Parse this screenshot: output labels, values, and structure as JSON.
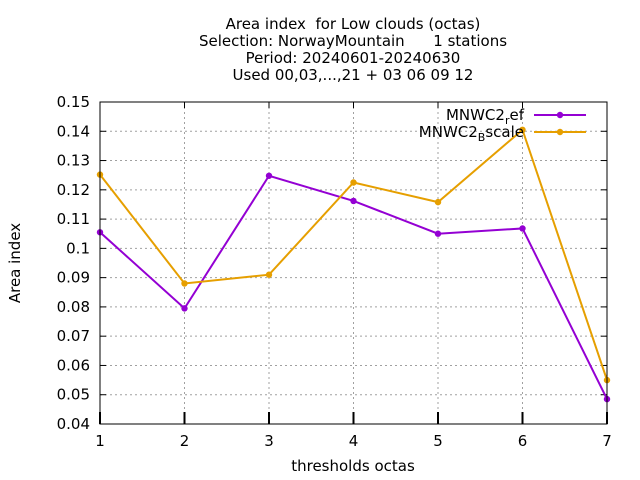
{
  "chart_data": {
    "type": "line",
    "title_lines": [
      "Area index  for Low clouds (octas)",
      "Selection: NorwayMountain      1 stations",
      "Period: 20240601-20240630",
      "Used 00,03,...,21 + 03 06 09 12"
    ],
    "xlabel": "thresholds octas",
    "ylabel": "Area index",
    "x": [
      1,
      2,
      3,
      4,
      5,
      6,
      7
    ],
    "xlim": [
      1,
      7
    ],
    "ylim": [
      0.04,
      0.15
    ],
    "xticks": [
      "1",
      "2",
      "3",
      "4",
      "5",
      "6",
      "7"
    ],
    "yticks": [
      "0.04",
      "0.05",
      "0.06",
      "0.07",
      "0.08",
      "0.09",
      "0.1",
      "0.11",
      "0.12",
      "0.13",
      "0.14",
      "0.15"
    ],
    "grid": true,
    "legend_position": "top-right",
    "series": [
      {
        "legend_main": "MNWC2",
        "legend_sub": "r",
        "legend_tail": "ef",
        "color": "#9400d3",
        "values": [
          0.1055,
          0.0795,
          0.1248,
          0.1162,
          0.105,
          0.1068,
          0.0485
        ]
      },
      {
        "legend_main": "MNWC2",
        "legend_sub": "B",
        "legend_tail": "scale",
        "color": "#e69f00",
        "values": [
          0.1252,
          0.088,
          0.091,
          0.1225,
          0.1158,
          0.1405,
          0.055
        ]
      }
    ]
  }
}
